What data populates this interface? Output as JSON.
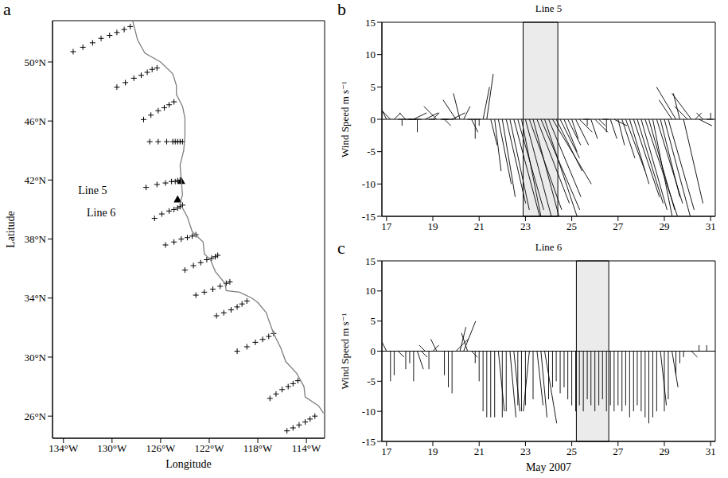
{
  "chart_data": [
    {
      "type": "scatter",
      "panel": "a",
      "x_label": "Longitude",
      "y_label": "Latitude",
      "xlim": [
        -134.9,
        -112.5
      ],
      "ylim": [
        24.5,
        52.8
      ],
      "xticks": [
        {
          "value": -134,
          "label": "134°W"
        },
        {
          "value": -130,
          "label": "130°W"
        },
        {
          "value": -126,
          "label": "126°W"
        },
        {
          "value": -122,
          "label": "122°W"
        },
        {
          "value": -118,
          "label": "118°W"
        },
        {
          "value": -114,
          "label": "114°W"
        }
      ],
      "yticks": [
        {
          "value": 26,
          "label": "26°N"
        },
        {
          "value": 30,
          "label": "30°N"
        },
        {
          "value": 34,
          "label": "34°N"
        },
        {
          "value": 38,
          "label": "38°N"
        },
        {
          "value": 42,
          "label": "42°N"
        },
        {
          "value": 46,
          "label": "46°N"
        },
        {
          "value": 50,
          "label": "50°N"
        }
      ],
      "series": [
        {
          "marker": "plus",
          "color": "#000000",
          "x": [
            -133.2,
            -132.4,
            -131.6,
            -130.9,
            -130.2,
            -129.6,
            -129.0,
            -128.5,
            -129.6,
            -128.9,
            -128.2,
            -127.6,
            -127.1,
            -126.7,
            -126.3,
            -127.4,
            -126.8,
            -126.2,
            -125.7,
            -125.3,
            -124.9,
            -126.9,
            -126.2,
            -125.5,
            -125.0,
            -124.8,
            -124.6,
            -124.4,
            -124.2,
            -127.2,
            -126.3,
            -125.6,
            -125.1,
            -124.8,
            -124.6,
            -124.4,
            -126.5,
            -125.9,
            -125.3,
            -124.9,
            -124.6,
            -124.4,
            -124.2,
            -125.6,
            -124.9,
            -124.3,
            -123.8,
            -123.4,
            -123.1,
            -124.0,
            -123.3,
            -122.7,
            -122.2,
            -121.8,
            -121.5,
            -121.3,
            -123.1,
            -122.4,
            -121.7,
            -121.1,
            -120.6,
            -120.3,
            -121.4,
            -120.8,
            -120.2,
            -119.7,
            -119.3,
            -118.9,
            -119.7,
            -118.9,
            -118.2,
            -117.6,
            -117.1,
            -116.7,
            -117.0,
            -116.5,
            -116.0,
            -115.5,
            -115.1,
            -114.7,
            -115.6,
            -115.1,
            -114.6,
            -114.1,
            -113.7,
            -113.3
          ],
          "y": [
            50.7,
            51.0,
            51.3,
            51.6,
            51.8,
            52.0,
            52.2,
            52.4,
            48.3,
            48.6,
            48.9,
            49.1,
            49.3,
            49.5,
            49.6,
            46.1,
            46.4,
            46.7,
            46.9,
            47.1,
            47.3,
            44.6,
            44.6,
            44.6,
            44.6,
            44.6,
            44.6,
            44.6,
            44.6,
            41.5,
            41.7,
            41.8,
            41.9,
            41.9,
            41.95,
            42.0,
            39.4,
            39.7,
            39.9,
            40.0,
            40.1,
            40.2,
            40.3,
            37.6,
            37.8,
            38.0,
            38.1,
            38.2,
            38.3,
            35.9,
            36.2,
            36.4,
            36.6,
            36.7,
            36.8,
            36.9,
            34.2,
            34.4,
            34.6,
            34.8,
            35.0,
            35.1,
            32.8,
            33.0,
            33.2,
            33.4,
            33.6,
            33.8,
            30.4,
            30.7,
            31.0,
            31.2,
            31.4,
            31.6,
            27.2,
            27.5,
            27.8,
            28.0,
            28.2,
            28.4,
            25.0,
            25.2,
            25.4,
            25.6,
            25.8,
            26.0
          ]
        },
        {
          "marker": "triangle",
          "color": "#000000",
          "x": [
            -124.3,
            -124.6
          ],
          "y": [
            41.95,
            40.7
          ]
        },
        {
          "type": "line",
          "color": "#7f7f7f",
          "x": [
            -128.3,
            -127.9,
            -127.3,
            -126.0,
            -125.0,
            -124.7,
            -124.7,
            -124.2,
            -124.0,
            -124.0,
            -124.1,
            -124.4,
            -124.3,
            -124.2,
            -124.4,
            -123.8,
            -123.4,
            -122.5,
            -122.4,
            -121.9,
            -121.5,
            -120.7,
            -120.6,
            -119.5,
            -118.5,
            -118.0,
            -117.3,
            -117.1,
            -116.7,
            -116.1,
            -115.7,
            -114.8,
            -114.2,
            -114.1,
            -113.0,
            -112.6
          ],
          "y": [
            52.8,
            51.5,
            50.6,
            50.0,
            49.2,
            48.4,
            47.8,
            47.0,
            46.2,
            45.0,
            44.0,
            43.0,
            42.0,
            41.0,
            40.4,
            39.5,
            38.5,
            37.8,
            37.0,
            36.6,
            35.8,
            35.0,
            34.5,
            34.4,
            34.0,
            33.7,
            33.0,
            32.5,
            31.6,
            30.6,
            29.7,
            28.9,
            28.0,
            27.3,
            26.7,
            26.2
          ]
        }
      ],
      "annotations": [
        {
          "text": "Line 5",
          "x": -131.6,
          "y": 41.3
        },
        {
          "text": "Line 6",
          "x": -130.9,
          "y": 39.8
        }
      ]
    },
    {
      "type": "stick",
      "panel": "b",
      "title": "Line 5",
      "y_label": "Wind Speed m s⁻¹",
      "xlim": [
        16.8,
        31.2
      ],
      "xticks": [
        17,
        19,
        21,
        23,
        25,
        27,
        29,
        31
      ],
      "ylim": [
        -15,
        15
      ],
      "yticks": [
        -15,
        -10,
        -5,
        0,
        5,
        10,
        15
      ],
      "color": "#000000",
      "shaded": [
        22.9,
        24.4
      ],
      "x": [
        17,
        17.17,
        17.33,
        17.5,
        17.67,
        17.83,
        18,
        18.17,
        18.33,
        18.5,
        18.67,
        18.83,
        19,
        19.17,
        19.33,
        19.5,
        19.67,
        19.83,
        20,
        20.17,
        20.33,
        20.5,
        20.67,
        20.83,
        21,
        21.17,
        21.33,
        21.5,
        21.67,
        21.83,
        22,
        22.17,
        22.33,
        22.5,
        22.67,
        22.83,
        23,
        23.17,
        23.33,
        23.5,
        23.67,
        23.83,
        24,
        24.17,
        24.33,
        24.5,
        24.67,
        24.83,
        25,
        25.17,
        25.33,
        25.5,
        25.67,
        25.83,
        26,
        26.17,
        26.33,
        26.5,
        26.67,
        26.83,
        27,
        27.17,
        27.33,
        27.5,
        27.67,
        27.83,
        28,
        28.17,
        28.33,
        28.5,
        28.67,
        28.83,
        29,
        29.17,
        29.33,
        29.5,
        29.67,
        29.83,
        30,
        30.17,
        30.33,
        30.5,
        30.67,
        30.83,
        31
      ],
      "u": [
        -2,
        -3,
        1,
        2,
        0,
        -1,
        1,
        2,
        0,
        -2,
        2,
        1,
        1,
        -2,
        2,
        1,
        -1,
        2,
        -2,
        -1,
        1,
        2,
        1,
        0,
        0,
        1,
        1,
        1,
        1,
        2,
        2,
        3,
        3,
        4,
        4,
        3,
        4,
        5,
        4,
        5,
        6,
        5,
        5,
        6,
        4,
        3,
        2,
        2,
        1,
        2,
        2,
        1,
        0,
        1,
        2,
        1,
        1,
        0,
        1,
        2,
        1,
        2,
        3,
        3,
        4,
        4,
        4,
        5,
        4,
        3,
        4,
        3,
        4,
        4,
        -2,
        -3,
        -1,
        3,
        -2,
        -3,
        1,
        2,
        -1,
        1,
        0
      ],
      "v": [
        4,
        3,
        1,
        0,
        -1,
        1,
        0,
        1,
        -2,
        0,
        1,
        0,
        1,
        2,
        0,
        -1,
        0,
        1,
        3,
        4,
        2,
        0,
        -2,
        -3,
        -1,
        5,
        7,
        -4,
        -8,
        -10,
        -12,
        -13,
        -14,
        -15,
        -14,
        -15,
        -15,
        -14,
        -15,
        -13,
        -14,
        -15,
        -12,
        -10,
        -8,
        -6,
        -5,
        -4,
        -3,
        -4,
        -2,
        0,
        -1,
        -3,
        -2,
        -1,
        0,
        -2,
        -3,
        -1,
        -4,
        -6,
        -8,
        -10,
        -12,
        -13,
        -14,
        -15,
        -14,
        -15,
        -13,
        -12,
        -15,
        -14,
        3,
        5,
        4,
        -13,
        2,
        4,
        1,
        -1,
        1,
        0,
        1
      ]
    },
    {
      "type": "stick",
      "panel": "c",
      "title": "Line 6",
      "y_label": "Wind Speed m s⁻¹",
      "x_label": "May 2007",
      "xlim": [
        16.8,
        31.2
      ],
      "xticks": [
        17,
        19,
        21,
        23,
        25,
        27,
        29,
        31
      ],
      "ylim": [
        -15,
        15
      ],
      "yticks": [
        -15,
        -10,
        -5,
        0,
        5,
        10,
        15
      ],
      "color": "#000000",
      "shaded": [
        25.2,
        26.6
      ],
      "x": [
        17,
        17.17,
        17.33,
        17.5,
        17.67,
        17.83,
        18,
        18.17,
        18.33,
        18.5,
        18.67,
        18.83,
        19,
        19.17,
        19.33,
        19.5,
        19.67,
        19.83,
        20,
        20.17,
        20.33,
        20.5,
        20.67,
        20.83,
        21,
        21.17,
        21.33,
        21.5,
        21.67,
        21.83,
        22,
        22.17,
        22.33,
        22.5,
        22.67,
        22.83,
        23,
        23.17,
        23.33,
        23.5,
        23.67,
        23.83,
        24,
        24.17,
        24.33,
        24.5,
        24.67,
        24.83,
        25,
        25.17,
        25.33,
        25.5,
        25.67,
        25.83,
        26,
        26.17,
        26.33,
        26.5,
        26.67,
        26.83,
        27,
        27.17,
        27.33,
        27.5,
        27.67,
        27.83,
        28,
        28.17,
        28.33,
        28.5,
        28.67,
        28.83,
        29,
        29.17,
        29.33,
        29.5,
        29.67,
        29.83,
        30,
        30.17,
        30.33,
        30.5,
        30.67,
        30.83,
        31
      ],
      "u": [
        -1,
        0,
        0,
        1,
        1,
        0,
        0,
        0,
        1,
        1,
        -1,
        0,
        1,
        -1,
        2,
        0,
        0,
        0,
        2,
        1,
        2,
        -1,
        1,
        0,
        0,
        0,
        0,
        0,
        0,
        1,
        0,
        0,
        1,
        1,
        0,
        0,
        0,
        -1,
        0,
        1,
        1,
        2,
        0,
        0,
        0,
        0,
        0,
        0,
        0,
        0,
        0,
        0,
        0,
        0,
        0,
        0,
        0,
        0,
        0,
        0,
        0,
        0,
        0,
        0,
        0,
        0,
        0,
        0,
        0,
        0,
        0,
        1,
        0,
        0,
        1,
        0,
        0,
        0,
        1,
        1,
        -1,
        0,
        1,
        0,
        1
      ],
      "v": [
        2,
        -5,
        -4,
        -1,
        0,
        -3,
        -2,
        -5,
        -3,
        -1,
        1,
        -3,
        1,
        2,
        0,
        -4,
        -6,
        -7,
        2,
        4,
        5,
        3,
        -1,
        -2,
        -5,
        -10,
        -11,
        -11,
        -11,
        -10,
        -11,
        -10,
        -11,
        -10,
        -9,
        -10,
        -9,
        -10,
        -8,
        -9,
        -11,
        -12,
        -8,
        -6,
        -5,
        -7,
        -6,
        -8,
        -9,
        -10,
        -9,
        -10,
        -8,
        -9,
        -10,
        -9,
        -8,
        -10,
        -9,
        -10,
        -9,
        -10,
        -9,
        -11,
        -10,
        -9,
        -10,
        -11,
        -12,
        -11,
        -10,
        -9,
        -10,
        -8,
        -6,
        -4,
        -2,
        -1,
        0,
        -1,
        0,
        1,
        0,
        1,
        0
      ]
    }
  ]
}
